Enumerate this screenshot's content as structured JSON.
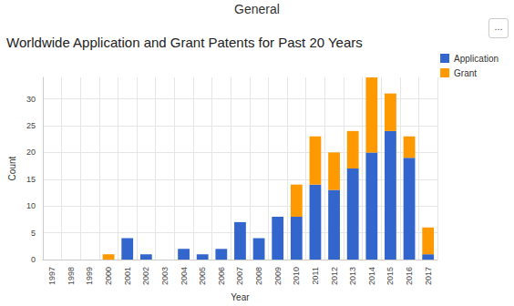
{
  "header": "General",
  "button": "...",
  "chart_data": {
    "type": "bar",
    "title": "Worldwide Application and Grant Patents for Past 20 Years",
    "x_label": "Year",
    "y_label": "Count",
    "categories": [
      "1997",
      "1998",
      "1999",
      "2000",
      "2001",
      "2002",
      "2003",
      "2004",
      "2005",
      "2006",
      "2007",
      "2008",
      "2009",
      "2010",
      "2011",
      "2012",
      "2013",
      "2014",
      "2015",
      "2016",
      "2017"
    ],
    "series": [
      {
        "name": "Application",
        "color": "#3366cc",
        "values": [
          0,
          0,
          0,
          0,
          4,
          1,
          0,
          2,
          1,
          2,
          7,
          4,
          8,
          8,
          14,
          13,
          17,
          20,
          24,
          19,
          1
        ]
      },
      {
        "name": "Grant",
        "color": "#ff9900",
        "values": [
          0,
          0,
          0,
          1,
          0,
          0,
          0,
          0,
          0,
          0,
          0,
          0,
          0,
          6,
          9,
          7,
          7,
          14,
          7,
          4,
          5
        ]
      }
    ],
    "ylim": [
      0,
      34
    ],
    "yticks": [
      0,
      5,
      10,
      15,
      20,
      25,
      30
    ],
    "stacked": true,
    "grid": true,
    "legend": "top-right"
  }
}
